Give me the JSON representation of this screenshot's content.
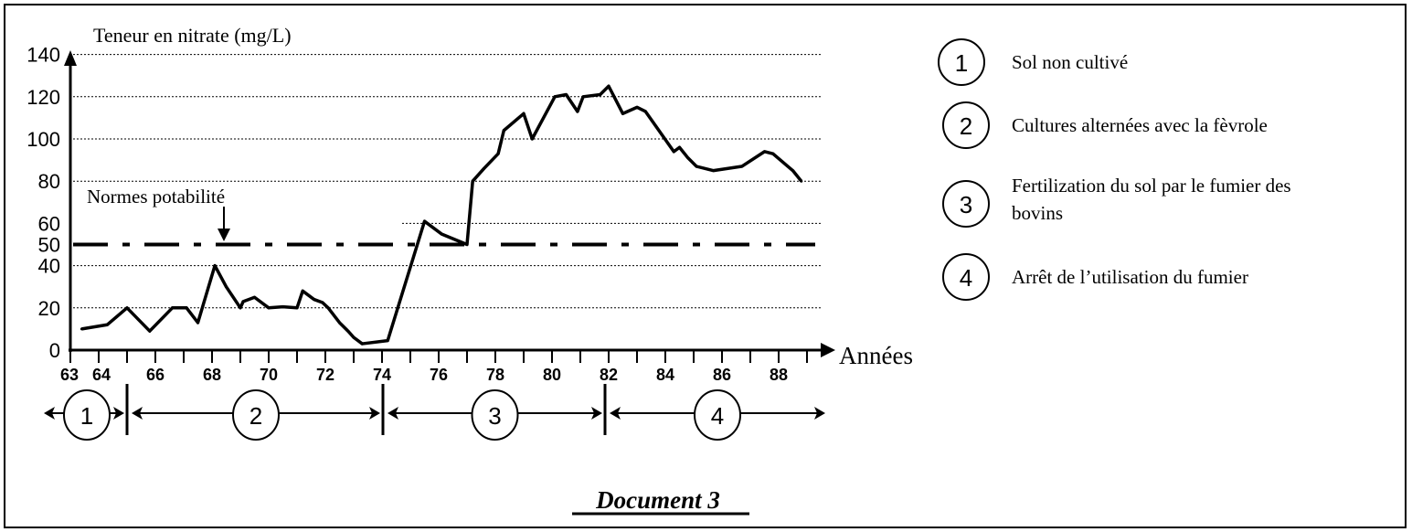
{
  "chart_data": {
    "type": "line",
    "title": "",
    "ylabel": "Teneur en nitrate (mg/L)",
    "xlabel": "Années",
    "ylim": [
      0,
      140
    ],
    "xlim": [
      63,
      89
    ],
    "yticks": [
      0,
      20,
      40,
      50,
      60,
      80,
      100,
      120,
      140
    ],
    "ytick_labels": [
      "0",
      "20",
      "40",
      "50",
      "60",
      "80",
      "100",
      "120",
      "140"
    ],
    "xtick_labels": [
      {
        "year": 63,
        "label": "63"
      },
      {
        "year": 64,
        "label": "64"
      },
      {
        "year": 66,
        "label": "66"
      },
      {
        "year": 68,
        "label": "68"
      },
      {
        "year": 70,
        "label": "70"
      },
      {
        "year": 72,
        "label": "72"
      },
      {
        "year": 74,
        "label": "74"
      },
      {
        "year": 76,
        "label": "76"
      },
      {
        "year": 78,
        "label": "78"
      },
      {
        "year": 80,
        "label": "80"
      },
      {
        "year": 82,
        "label": "82"
      },
      {
        "year": 84,
        "label": "84"
      },
      {
        "year": 86,
        "label": "86"
      },
      {
        "year": 88,
        "label": "88"
      }
    ],
    "grid": "horizontal dotted",
    "threshold": {
      "value": 50,
      "label": "Normes potabilité",
      "style": "dash-dot"
    },
    "series": [
      {
        "color": "#000000",
        "x": [
          63.4,
          64.3,
          65,
          65.8,
          66.6,
          67.1,
          67.5,
          68.1,
          68.5,
          69,
          69.1,
          69.5,
          70,
          70.5,
          71,
          71.2,
          71.6,
          71.9,
          72.1,
          72.5,
          72.8,
          73,
          73.3,
          74.2,
          75.5,
          76.1,
          77,
          77.2,
          77.6,
          78.1,
          78.3,
          79,
          79.3,
          80.1,
          80.5,
          80.9,
          81.1,
          81.7,
          82,
          82.5,
          83,
          83.3,
          84.3,
          84.5,
          84.8,
          85.1,
          85.7,
          86.7,
          87.5,
          87.8,
          88.5,
          88.8
        ],
        "y": [
          10,
          12,
          20,
          9,
          20,
          20,
          13,
          40,
          30,
          20,
          23,
          25,
          20,
          20.5,
          20,
          28,
          24,
          22.5,
          20,
          13,
          9,
          6,
          3,
          4.5,
          61,
          55,
          50,
          80,
          86,
          93,
          104,
          112,
          100,
          120,
          121,
          113,
          120,
          121,
          125,
          112,
          115,
          113,
          94,
          96,
          91,
          87,
          85,
          87,
          94,
          93,
          85,
          80
        ]
      }
    ],
    "periods": [
      {
        "id": "1",
        "start": 63,
        "end": 65
      },
      {
        "id": "2",
        "start": 65,
        "end": 74
      },
      {
        "id": "3",
        "start": 74,
        "end": 82
      },
      {
        "id": "4",
        "start": 82,
        "end": 89
      }
    ]
  },
  "legend": [
    {
      "id": "1",
      "text": "Sol non cultivé"
    },
    {
      "id": "2",
      "text": "Cultures alternées avec la fèvrole"
    },
    {
      "id": "3",
      "text": "Fertilization du sol par le fumier des",
      "text2": "bovins"
    },
    {
      "id": "4",
      "text": "Arrêt de l’utilisation du fumier"
    }
  ],
  "caption": "Document 3"
}
